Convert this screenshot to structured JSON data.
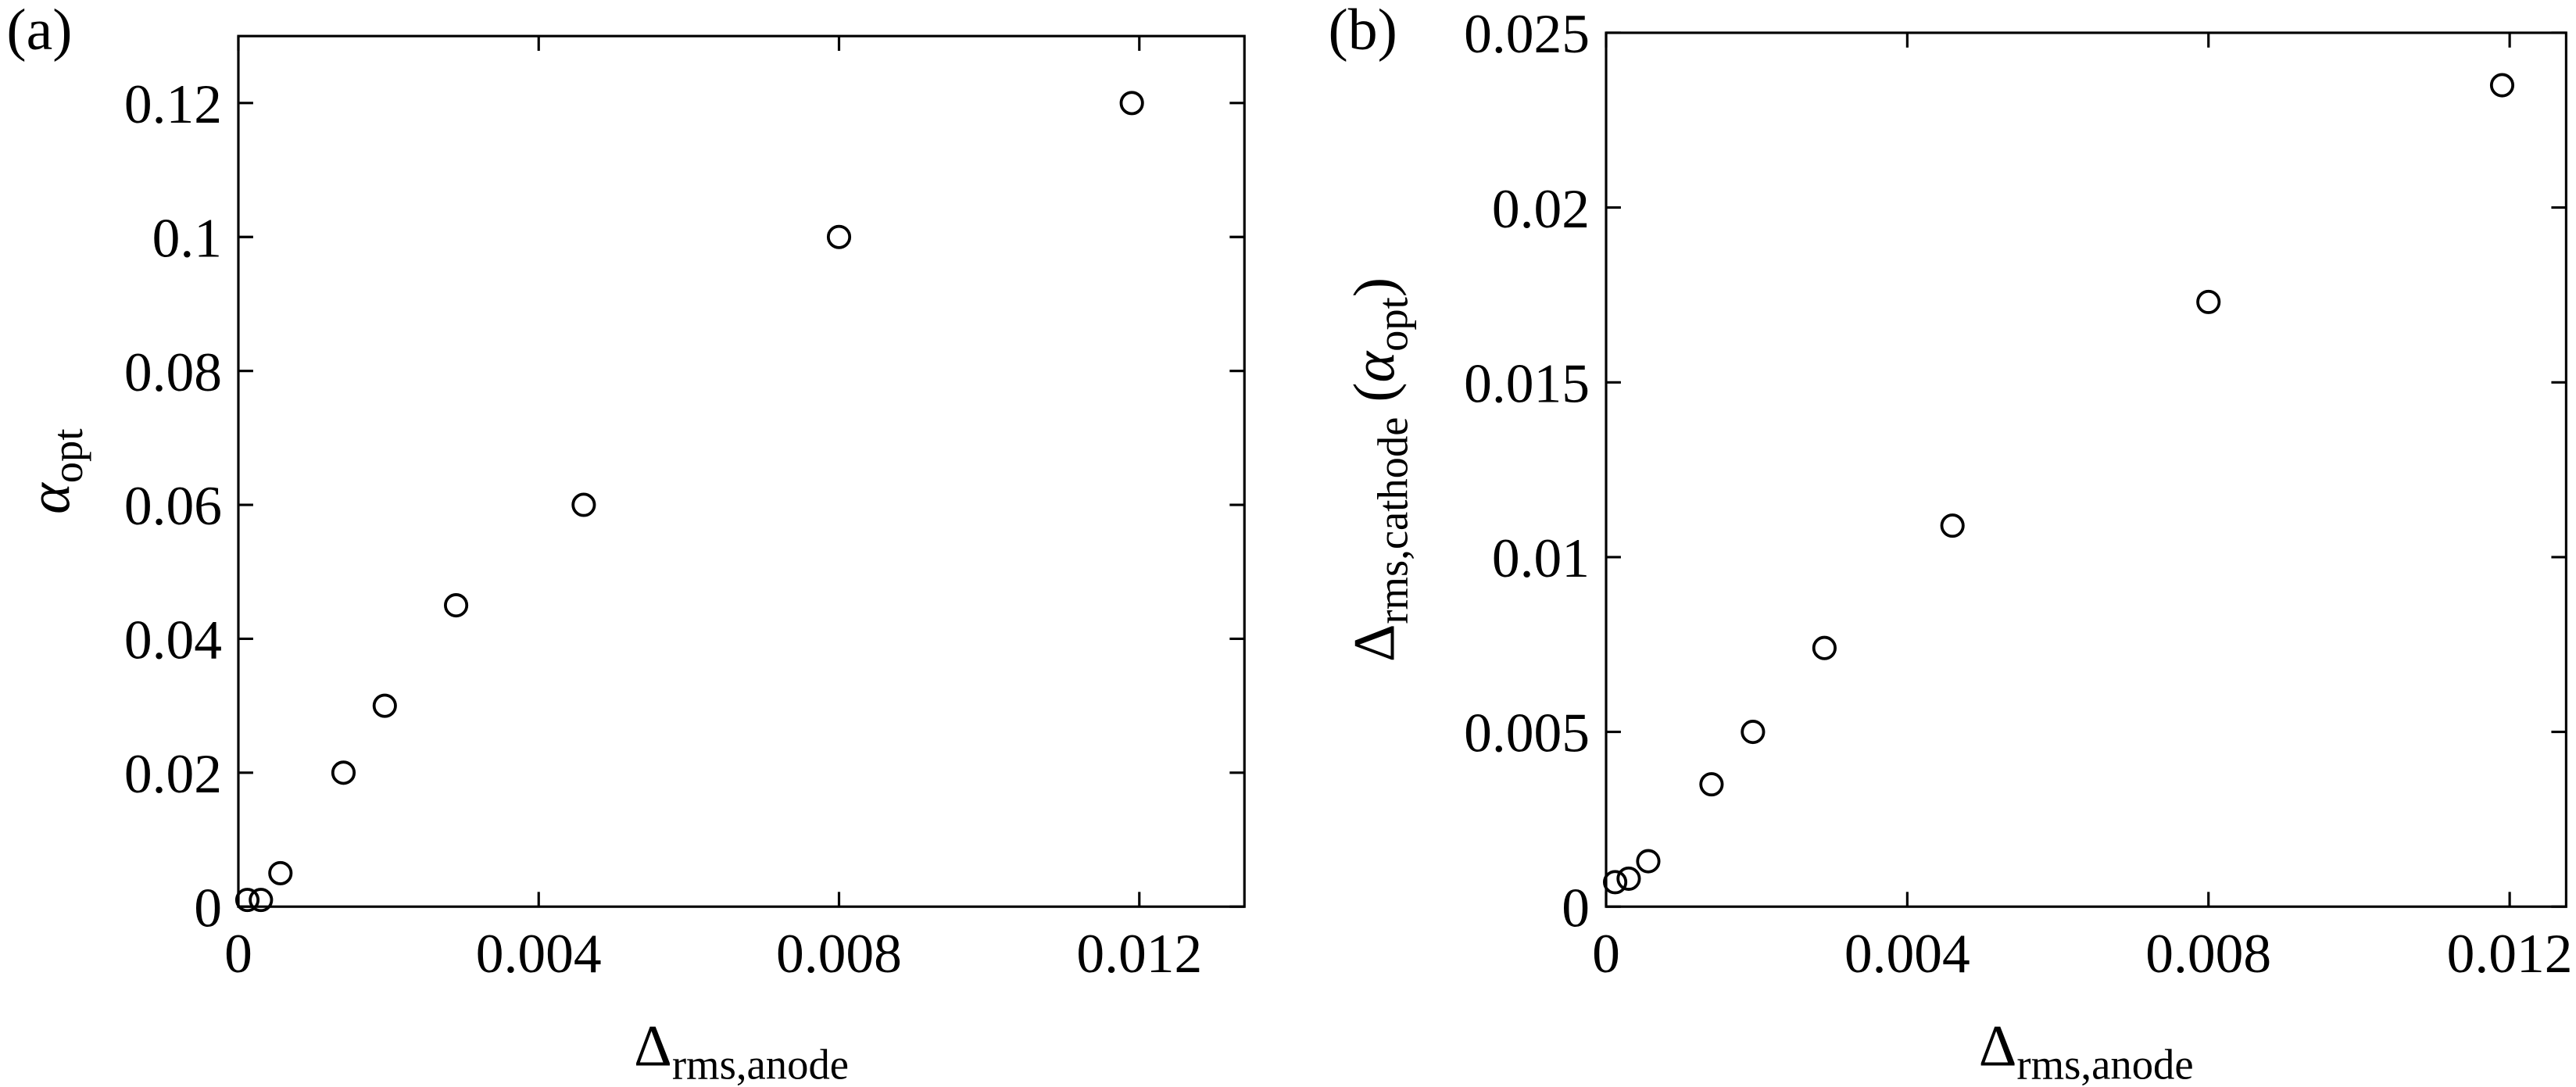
{
  "chart_data": [
    {
      "type": "scatter",
      "panel_label": "(a)",
      "xlabel": [
        "Δ",
        "rms,anode"
      ],
      "ylabel": [
        "α",
        "opt"
      ],
      "x": [
        0.00012,
        0.0003,
        0.00056,
        0.0014,
        0.00195,
        0.0029,
        0.0046,
        0.008,
        0.0119
      ],
      "values": [
        0.001,
        0.001,
        0.005,
        0.02,
        0.03,
        0.045,
        0.06,
        0.1,
        0.12
      ],
      "color": "#000000",
      "xlim": [
        0,
        0.0134
      ],
      "xticks": [
        0,
        0.004,
        0.008,
        0.012
      ],
      "ylim": [
        0,
        0.13
      ],
      "yticks": [
        0,
        0.02,
        0.04,
        0.06,
        0.08,
        0.1,
        0.12
      ]
    },
    {
      "type": "scatter",
      "panel_label": "(b)",
      "xlabel": [
        "Δ",
        "rms,anode"
      ],
      "ylabel": [
        "Δ",
        "rms,cathode",
        " (",
        "α",
        "opt",
        ")"
      ],
      "x": [
        0.00012,
        0.0003,
        0.00056,
        0.0014,
        0.00195,
        0.0029,
        0.0046,
        0.008,
        0.0119
      ],
      "values": [
        0.0007,
        0.0008,
        0.0013,
        0.0035,
        0.005,
        0.0074,
        0.0109,
        0.0173,
        0.0235
      ],
      "color": "#000000",
      "xlim": [
        0,
        0.01275
      ],
      "xticks": [
        0,
        0.004,
        0.008,
        0.012
      ],
      "ylim": [
        0,
        0.025
      ],
      "yticks": [
        0,
        0.005,
        0.01,
        0.015,
        0.02,
        0.025
      ]
    }
  ]
}
